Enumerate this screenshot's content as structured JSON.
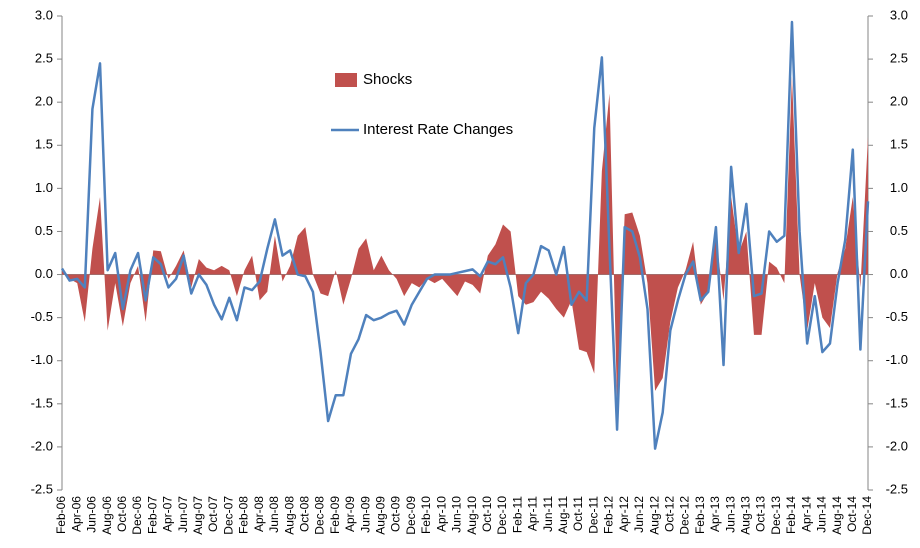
{
  "chart_data": {
    "type": "area-line",
    "categories": [
      "Feb-06",
      null,
      "Apr-06",
      null,
      "Jun-06",
      null,
      "Aug-06",
      null,
      "Oct-06",
      null,
      "Dec-06",
      null,
      "Feb-07",
      null,
      "Apr-07",
      null,
      "Jun-07",
      null,
      "Aug-07",
      null,
      "Oct-07",
      null,
      "Dec-07",
      null,
      "Feb-08",
      null,
      "Apr-08",
      null,
      "Jun-08",
      null,
      "Aug-08",
      null,
      "Oct-08",
      null,
      "Dec-08",
      null,
      "Feb-09",
      null,
      "Apr-09",
      null,
      "Jun-09",
      null,
      "Aug-09",
      null,
      "Oct-09",
      null,
      "Dec-09",
      null,
      "Feb-10",
      null,
      "Apr-10",
      null,
      "Jun-10",
      null,
      "Aug-10",
      null,
      "Oct-10",
      null,
      "Dec-10",
      null,
      "Feb-11",
      null,
      "Apr-11",
      null,
      "Jun-11",
      null,
      "Aug-11",
      null,
      "Oct-11",
      null,
      "Dec-11",
      null,
      "Feb-12",
      null,
      "Apr-12",
      null,
      "Jun-12",
      null,
      "Aug-12",
      null,
      "Oct-12",
      null,
      "Dec-12",
      null,
      "Feb-13",
      null,
      "Apr-13",
      null,
      "Jun-13",
      null,
      "Aug-13",
      null,
      "Oct-13",
      null,
      "Dec-13",
      null,
      "Feb-14",
      null,
      "Apr-14",
      null,
      "Jun-14",
      null,
      "Aug-14",
      null,
      "Oct-14",
      null,
      "Dec-14"
    ],
    "series": [
      {
        "name": "Shocks",
        "color": "#c0504d",
        "kind": "area",
        "values": [
          0.05,
          -0.05,
          -0.1,
          -0.55,
          0.3,
          0.9,
          -0.65,
          -0.1,
          -0.6,
          -0.1,
          0.1,
          -0.55,
          0.28,
          0.27,
          -0.05,
          0.1,
          0.28,
          -0.15,
          0.18,
          0.08,
          0.05,
          0.1,
          0.05,
          -0.25,
          0.05,
          0.22,
          -0.3,
          -0.2,
          0.45,
          -0.08,
          0.1,
          0.45,
          0.55,
          0.0,
          -0.22,
          -0.25,
          0.05,
          -0.35,
          -0.05,
          0.3,
          0.42,
          0.05,
          0.22,
          0.05,
          -0.05,
          -0.25,
          -0.1,
          -0.15,
          -0.05,
          -0.1,
          -0.05,
          -0.15,
          -0.25,
          -0.08,
          -0.12,
          -0.22,
          0.22,
          0.35,
          0.58,
          0.5,
          -0.25,
          -0.35,
          -0.32,
          -0.2,
          -0.28,
          -0.4,
          -0.5,
          -0.3,
          -0.87,
          -0.9,
          -1.15,
          1.2,
          2.1,
          -1.5,
          0.7,
          0.72,
          0.45,
          -0.1,
          -1.35,
          -1.2,
          -0.55,
          -0.15,
          0.05,
          0.38,
          -0.35,
          -0.2,
          0.45,
          -0.3,
          0.9,
          0.25,
          0.5,
          -0.7,
          -0.7,
          0.15,
          0.08,
          -0.1,
          2.3,
          0.0,
          -0.65,
          -0.1,
          -0.5,
          -0.62,
          0.02,
          0.3,
          0.9,
          -0.15,
          1.6
        ]
      },
      {
        "name": "Interest Rate Changes",
        "color": "#4f81bd",
        "kind": "line",
        "axis": "y2",
        "values": [
          0.07,
          -0.07,
          -0.05,
          -0.15,
          1.92,
          2.45,
          0.05,
          0.25,
          -0.4,
          0.05,
          0.25,
          -0.3,
          0.2,
          0.12,
          -0.15,
          -0.05,
          0.22,
          -0.22,
          0.0,
          -0.12,
          -0.35,
          -0.52,
          -0.27,
          -0.53,
          -0.15,
          -0.18,
          -0.08,
          0.3,
          0.64,
          0.22,
          0.28,
          0.0,
          -0.02,
          -0.2,
          -0.9,
          -1.7,
          -1.4,
          -1.4,
          -0.92,
          -0.75,
          -0.47,
          -0.53,
          -0.5,
          -0.45,
          -0.42,
          -0.58,
          -0.35,
          -0.2,
          -0.05,
          0.0,
          0.0,
          0.0,
          0.02,
          0.04,
          0.06,
          -0.02,
          0.15,
          0.12,
          0.2,
          -0.15,
          -0.68,
          -0.1,
          0.0,
          0.33,
          0.28,
          0.0,
          0.32,
          -0.35,
          -0.2,
          -0.3,
          1.7,
          2.52,
          0.3,
          -1.8,
          0.55,
          0.5,
          0.2,
          -0.4,
          -2.02,
          -1.6,
          -0.65,
          -0.3,
          0.0,
          0.15,
          -0.3,
          -0.2,
          0.55,
          -1.05,
          1.25,
          0.25,
          0.82,
          -0.25,
          -0.22,
          0.5,
          0.38,
          0.45,
          2.93,
          0.5,
          -0.8,
          -0.25,
          -0.9,
          -0.8,
          -0.1,
          0.4,
          1.45,
          -0.87,
          0.85
        ]
      }
    ],
    "ylim": [
      -2.5,
      3.0
    ],
    "yticks": [
      -2.5,
      {
        "value": -2.0,
        "label": "-2.0"
      },
      -1.5,
      {
        "value": -1.0,
        "label": "-1.0"
      },
      -0.5,
      {
        "value": 0.0,
        "label": "0.0"
      },
      0.5,
      {
        "value": 1.0,
        "label": "1.0"
      },
      1.5,
      {
        "value": 2.0,
        "label": "2.0"
      },
      2.5,
      {
        "value": 3.0,
        "label": "3.0"
      }
    ],
    "y2lim": [
      -2.5,
      3.0
    ],
    "y2ticks": [
      -2.5,
      {
        "value": -2.0,
        "label": "-2.0"
      },
      -1.5,
      {
        "value": -1.0,
        "label": "-1.0"
      },
      -0.5,
      {
        "value": 0.0,
        "label": "0.0"
      },
      0.5,
      {
        "value": 1.0,
        "label": "1.0"
      },
      1.5,
      {
        "value": 2.0,
        "label": "2.0"
      },
      2.5,
      {
        "value": 3.0,
        "label": "3.0"
      }
    ],
    "legend": "upper center"
  }
}
